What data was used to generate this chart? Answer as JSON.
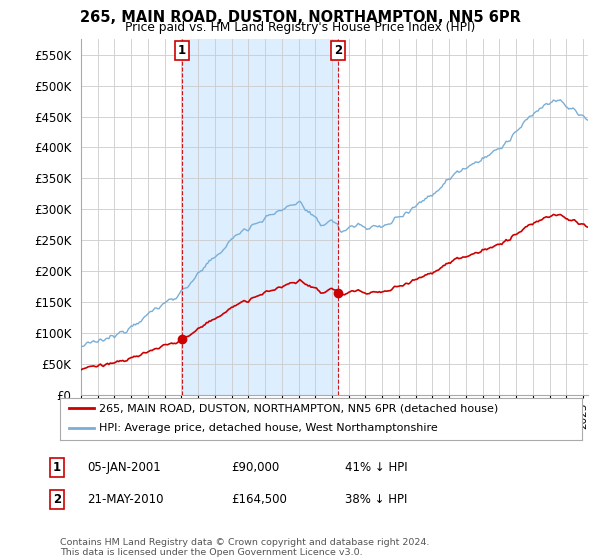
{
  "title": "265, MAIN ROAD, DUSTON, NORTHAMPTON, NN5 6PR",
  "subtitle": "Price paid vs. HM Land Registry's House Price Index (HPI)",
  "legend_line1": "265, MAIN ROAD, DUSTON, NORTHAMPTON, NN5 6PR (detached house)",
  "legend_line2": "HPI: Average price, detached house, West Northamptonshire",
  "footnote": "Contains HM Land Registry data © Crown copyright and database right 2024.\nThis data is licensed under the Open Government Licence v3.0.",
  "table_rows": [
    {
      "num": "1",
      "date": "05-JAN-2001",
      "price": "£90,000",
      "hpi": "41% ↓ HPI"
    },
    {
      "num": "2",
      "date": "21-MAY-2010",
      "price": "£164,500",
      "hpi": "38% ↓ HPI"
    }
  ],
  "sale1_x": 2001.04,
  "sale1_y": 90000,
  "sale2_x": 2010.38,
  "sale2_y": 164500,
  "hpi_color": "#7aaed6",
  "price_color": "#cc0000",
  "vline_color": "#cc0000",
  "bg_color": "#ffffff",
  "grid_color": "#cccccc",
  "span_color": "#ddeeff",
  "ylim": [
    0,
    575000
  ],
  "xlim": [
    1995.0,
    2025.3
  ],
  "yticks": [
    0,
    50000,
    100000,
    150000,
    200000,
    250000,
    300000,
    350000,
    400000,
    450000,
    500000,
    550000
  ]
}
